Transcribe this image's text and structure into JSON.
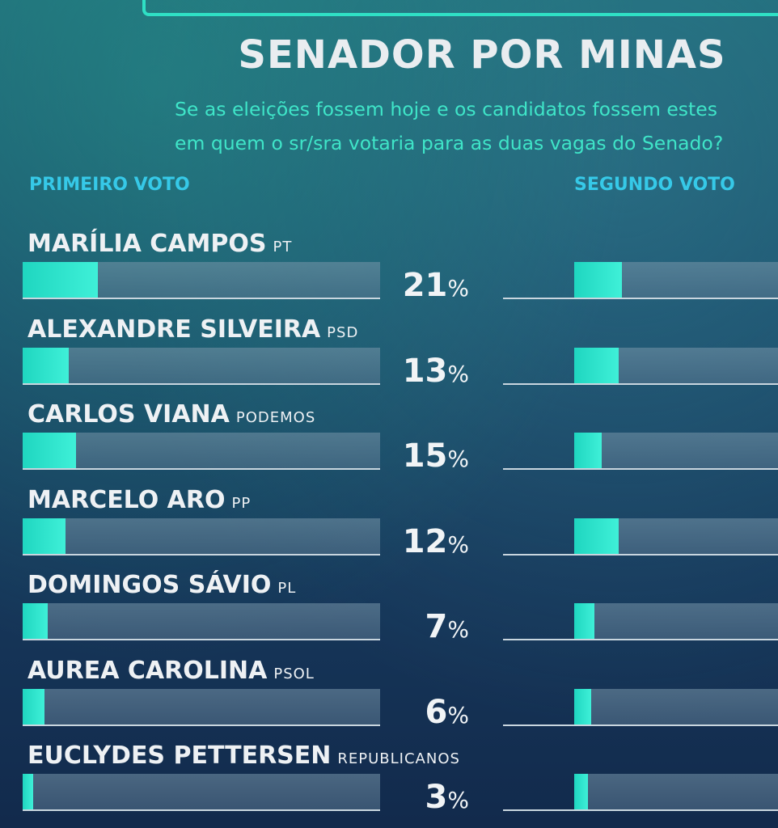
{
  "title": "SENADOR POR MINAS",
  "subtitle_line1": "Se as eleições fossem hoje e os candidatos fossem estes",
  "subtitle_line2": "em quem o sr/sra votaria para as duas vagas do Senado?",
  "column_first": "PRIMEIRO VOTO",
  "column_second": "SEGUNDO VOTO",
  "colors": {
    "accent": "#2fe0c5",
    "header_blue": "#36c9e8"
  },
  "chart_data": {
    "type": "bar",
    "title": "SENADOR POR MINAS",
    "categories": [
      "MARÍLIA CAMPOS",
      "ALEXANDRE SILVEIRA",
      "CARLOS VIANA",
      "MARCELO ARO",
      "DOMINGOS SÁVIO",
      "AUREA CAROLINA",
      "EUCLYDES PETTERSEN"
    ],
    "parties": [
      "PT",
      "PSD",
      "PODEMOS",
      "PP",
      "PL",
      "PSOL",
      "REPUBLICANOS"
    ],
    "series": [
      {
        "name": "PRIMEIRO VOTO",
        "values": [
          21,
          13,
          15,
          12,
          7,
          6,
          3
        ],
        "labels": [
          "21",
          "13",
          "15",
          "12",
          "7",
          "6",
          "3"
        ]
      },
      {
        "name": "SEGUNDO VOTO",
        "values": [
          14,
          13,
          8,
          13,
          6,
          5,
          4
        ]
      }
    ],
    "unit": "%",
    "ylim": [
      0,
      100
    ]
  }
}
